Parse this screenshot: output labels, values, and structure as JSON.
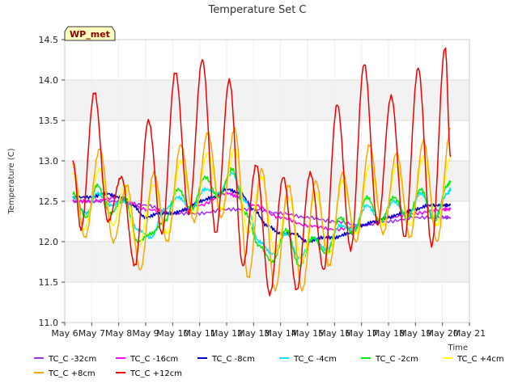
{
  "chart_data": {
    "type": "line",
    "title": "Temperature Set C",
    "xlabel": "Time",
    "ylabel": "Temperature (C)",
    "ylim": [
      11.0,
      14.5
    ],
    "yticks": [
      "11.0",
      "11.5",
      "12.0",
      "12.5",
      "13.0",
      "13.5",
      "14.0",
      "14.5"
    ],
    "xlim": [
      6,
      21
    ],
    "xticks": [
      {
        "v": 6,
        "label": "May 6"
      },
      {
        "v": 7,
        "label": "May 7"
      },
      {
        "v": 8,
        "label": "May 8"
      },
      {
        "v": 9,
        "label": "May 9"
      },
      {
        "v": 10,
        "label": "May 10"
      },
      {
        "v": 11,
        "label": "May 11"
      },
      {
        "v": 12,
        "label": "May 12"
      },
      {
        "v": 13,
        "label": "May 13"
      },
      {
        "v": 14,
        "label": "May 14"
      },
      {
        "v": 15,
        "label": "May 15"
      },
      {
        "v": 16,
        "label": "May 16"
      },
      {
        "v": 17,
        "label": "May 17"
      },
      {
        "v": 18,
        "label": "May 18"
      },
      {
        "v": 19,
        "label": "May 19"
      },
      {
        "v": 20,
        "label": "May 20"
      },
      {
        "v": 21,
        "label": "May 21"
      }
    ],
    "badge": "WP_met",
    "legend": {
      "position": "bottom"
    },
    "series": [
      {
        "name": "TC_C -32cm",
        "color": "#9b30ff",
        "x": [
          6.3,
          7,
          8,
          9,
          10,
          11,
          12,
          13,
          14,
          15,
          16,
          17,
          18,
          19,
          20,
          20.3
        ],
        "y": [
          12.5,
          12.5,
          12.5,
          12.45,
          12.35,
          12.35,
          12.4,
          12.4,
          12.35,
          12.3,
          12.25,
          12.2,
          12.25,
          12.3,
          12.3,
          12.3
        ]
      },
      {
        "name": "TC_C -16cm",
        "color": "#ff00ff",
        "x": [
          6.3,
          7,
          8,
          9,
          10,
          11,
          12,
          12.5,
          13,
          14,
          15,
          16,
          17,
          18,
          19,
          20,
          20.3
        ],
        "y": [
          12.5,
          12.5,
          12.55,
          12.4,
          12.35,
          12.45,
          12.6,
          12.55,
          12.45,
          12.3,
          12.2,
          12.15,
          12.2,
          12.3,
          12.35,
          12.4,
          12.4
        ]
      },
      {
        "name": "TC_C -8cm",
        "color": "#0000cd",
        "x": [
          6.3,
          7,
          7.5,
          8,
          8.5,
          9,
          9.5,
          10,
          10.5,
          11,
          11.5,
          12,
          12.5,
          13,
          13.5,
          14,
          14.5,
          15,
          15.5,
          16,
          16.5,
          17,
          17.5,
          18,
          18.5,
          19,
          19.5,
          20,
          20.3
        ],
        "y": [
          12.55,
          12.55,
          12.6,
          12.55,
          12.45,
          12.3,
          12.35,
          12.35,
          12.4,
          12.5,
          12.55,
          12.65,
          12.6,
          12.4,
          12.2,
          12.1,
          12.1,
          12.0,
          12.05,
          12.05,
          12.1,
          12.2,
          12.25,
          12.3,
          12.35,
          12.4,
          12.45,
          12.45,
          12.45
        ]
      },
      {
        "name": "TC_C -4cm",
        "color": "#00e5ee",
        "x": [
          6.3,
          6.8,
          7.2,
          7.7,
          8.2,
          8.7,
          9.2,
          9.7,
          10.2,
          10.7,
          11.2,
          11.7,
          12.2,
          12.7,
          13.2,
          13.7,
          14.2,
          14.7,
          15.2,
          15.7,
          16.2,
          16.7,
          17.2,
          17.7,
          18.2,
          18.7,
          19.2,
          19.7,
          20.2,
          20.3
        ],
        "y": [
          12.55,
          12.35,
          12.6,
          12.45,
          12.5,
          12.15,
          12.05,
          12.4,
          12.55,
          12.4,
          12.65,
          12.6,
          12.85,
          12.5,
          12.0,
          11.85,
          12.1,
          11.8,
          12.05,
          11.9,
          12.2,
          12.15,
          12.45,
          12.25,
          12.5,
          12.3,
          12.6,
          12.3,
          12.6,
          12.65
        ]
      },
      {
        "name": "TC_C -2cm",
        "color": "#00ee00",
        "x": [
          6.3,
          6.8,
          7.2,
          7.7,
          8.2,
          8.7,
          9.2,
          9.7,
          10.2,
          10.7,
          11.2,
          11.7,
          12.2,
          12.7,
          13.2,
          13.7,
          14.2,
          14.7,
          15.2,
          15.7,
          16.2,
          16.7,
          17.2,
          17.7,
          18.2,
          18.7,
          19.2,
          19.7,
          20.2,
          20.3
        ],
        "y": [
          12.6,
          12.3,
          12.7,
          12.35,
          12.55,
          12.0,
          12.1,
          12.25,
          12.65,
          12.4,
          12.8,
          12.55,
          12.9,
          12.35,
          11.95,
          11.75,
          12.15,
          11.7,
          12.05,
          11.85,
          12.3,
          12.1,
          12.55,
          12.25,
          12.55,
          12.3,
          12.65,
          12.25,
          12.7,
          12.75
        ]
      },
      {
        "name": "TC_C +4cm",
        "color": "#ffff00",
        "x": [
          6.3,
          6.7,
          7.3,
          7.8,
          8.2,
          8.7,
          9.3,
          9.8,
          10.3,
          10.8,
          11.3,
          11.8,
          12.3,
          12.8,
          13.3,
          13.8,
          14.3,
          14.8,
          15.3,
          15.8,
          16.3,
          16.8,
          17.3,
          17.8,
          18.3,
          18.8,
          19.3,
          19.8,
          20.3
        ],
        "y": [
          12.85,
          12.15,
          12.9,
          12.2,
          12.7,
          11.9,
          12.7,
          12.1,
          13.0,
          12.35,
          13.1,
          12.4,
          13.15,
          12.1,
          12.8,
          11.85,
          12.55,
          11.75,
          12.6,
          11.85,
          12.75,
          12.1,
          12.95,
          12.2,
          12.95,
          12.2,
          13.05,
          12.2,
          13.05
        ]
      },
      {
        "name": "TC_C +8cm",
        "color": "#ffa500",
        "x": [
          6.3,
          6.75,
          7.3,
          7.8,
          8.3,
          8.8,
          9.3,
          9.8,
          10.3,
          10.8,
          11.3,
          11.8,
          12.3,
          12.8,
          13.3,
          13.8,
          14.3,
          14.8,
          15.3,
          15.8,
          16.3,
          16.8,
          17.3,
          17.8,
          18.3,
          18.8,
          19.3,
          19.8,
          20.3
        ],
        "y": [
          12.95,
          12.05,
          13.15,
          12.0,
          12.7,
          11.65,
          12.85,
          12.0,
          13.2,
          12.25,
          13.35,
          12.3,
          13.4,
          11.55,
          12.9,
          11.4,
          12.7,
          11.4,
          12.75,
          11.7,
          12.85,
          12.0,
          13.2,
          12.1,
          13.1,
          12.05,
          13.25,
          12.0,
          13.4
        ]
      },
      {
        "name": "TC_C +12cm",
        "color": "#ee0000",
        "x": [
          6.3,
          6.6,
          7.1,
          7.6,
          8.1,
          8.6,
          9.1,
          9.6,
          10.1,
          10.6,
          11.1,
          11.6,
          12.1,
          12.6,
          13.1,
          13.6,
          14.1,
          14.6,
          15.1,
          15.6,
          16.1,
          16.6,
          17.1,
          17.6,
          18.1,
          18.6,
          19.1,
          19.6,
          20.1,
          20.3
        ],
        "y": [
          13.0,
          12.15,
          13.85,
          12.25,
          12.8,
          11.7,
          13.5,
          12.1,
          14.1,
          12.35,
          14.25,
          12.1,
          14.0,
          11.7,
          12.95,
          11.35,
          12.8,
          11.4,
          12.85,
          11.65,
          13.7,
          11.9,
          14.2,
          12.2,
          13.8,
          12.05,
          14.15,
          11.95,
          14.4,
          13.05
        ]
      }
    ]
  }
}
